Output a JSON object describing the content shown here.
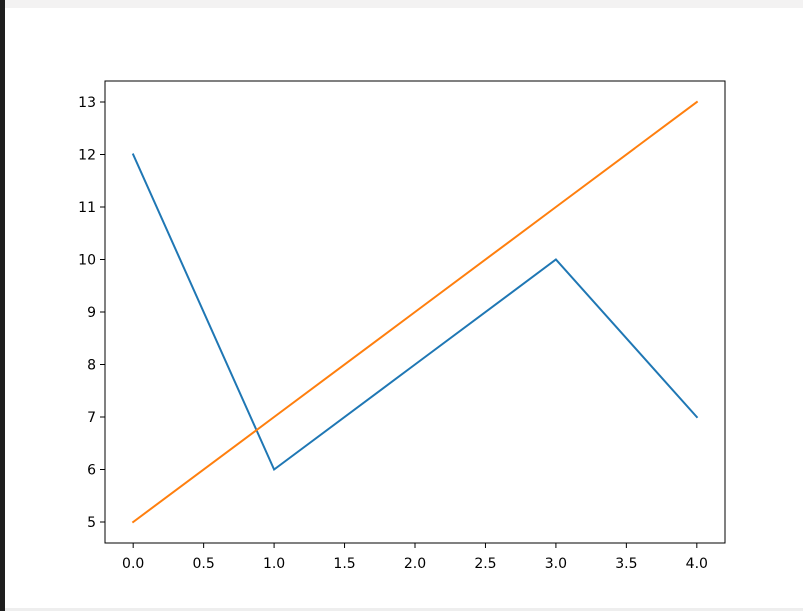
{
  "chart_data": {
    "type": "line",
    "title": "",
    "xlabel": "",
    "ylabel": "",
    "xlim": [
      -0.2,
      4.2
    ],
    "ylim": [
      4.6,
      13.4
    ],
    "grid": false,
    "xticks": [
      "0.0",
      "0.5",
      "1.0",
      "1.5",
      "2.0",
      "2.5",
      "3.0",
      "3.5",
      "4.0"
    ],
    "yticks": [
      "5",
      "6",
      "7",
      "8",
      "9",
      "10",
      "11",
      "12",
      "13"
    ],
    "x": [
      0,
      1,
      2,
      3,
      4
    ],
    "series": [
      {
        "values": [
          12,
          6,
          8,
          10,
          7
        ],
        "color": "#1f77b4"
      },
      {
        "values": [
          5,
          7,
          9,
          11,
          13
        ],
        "color": "#ff7f0e"
      }
    ]
  }
}
